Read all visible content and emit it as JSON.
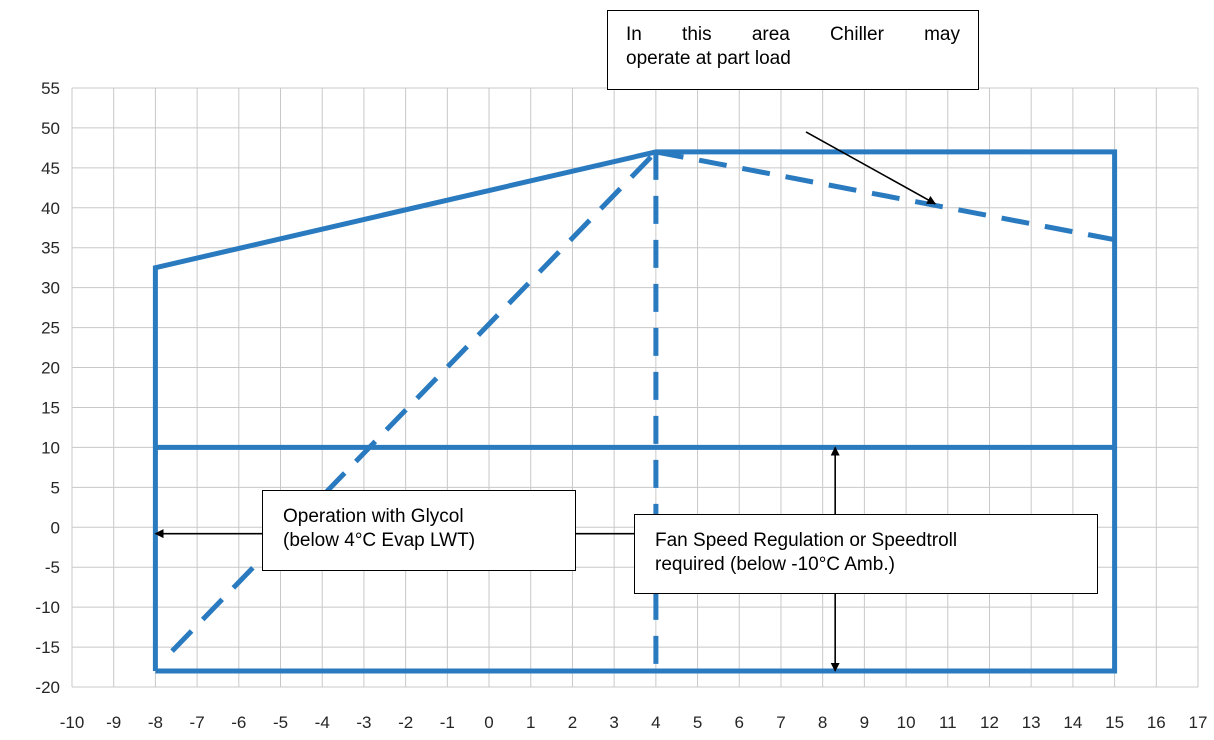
{
  "chart_data": {
    "type": "line",
    "title": "",
    "xlabel": "",
    "ylabel": "",
    "xlim": [
      -10,
      17
    ],
    "ylim": [
      -20,
      55
    ],
    "x_ticks": [
      -10,
      -9,
      -8,
      -7,
      -6,
      -5,
      -4,
      -3,
      -2,
      -1,
      0,
      1,
      2,
      3,
      4,
      5,
      6,
      7,
      8,
      9,
      10,
      11,
      12,
      13,
      14,
      15,
      16,
      17
    ],
    "y_ticks": [
      55,
      50,
      45,
      40,
      35,
      30,
      25,
      20,
      15,
      10,
      5,
      0,
      -5,
      -10,
      -15,
      -20
    ],
    "grid": true,
    "legend": "none",
    "colors": {
      "series": "#2a7ac0",
      "grid": "#c8c8c8",
      "annotation": "#000000"
    },
    "series": [
      {
        "style": "solid",
        "points": [
          [
            -8,
            -18
          ],
          [
            -8,
            32.5
          ],
          [
            4,
            47
          ],
          [
            15,
            47
          ],
          [
            15,
            -18
          ],
          [
            -8,
            -18
          ]
        ]
      },
      {
        "style": "solid",
        "points": [
          [
            -8,
            10
          ],
          [
            15,
            10
          ]
        ]
      },
      {
        "style": "dashed",
        "points": [
          [
            -7.6,
            -15.5
          ],
          [
            4,
            47
          ]
        ]
      },
      {
        "style": "dashed",
        "points": [
          [
            4,
            47
          ],
          [
            11,
            40
          ],
          [
            15,
            36
          ]
        ]
      },
      {
        "style": "dashed",
        "points": [
          [
            4,
            47
          ],
          [
            4,
            -18
          ]
        ]
      }
    ],
    "annotations": [
      {
        "id": "partload",
        "lines": [
          "In this area Chiller may",
          "operate at part load"
        ],
        "arrow_from": [
          7.6,
          49.5
        ],
        "arrow_to": [
          10.7,
          40.5
        ],
        "arrow_heads": "end"
      },
      {
        "id": "glycol",
        "lines": [
          "Operation with Glycol",
          "(below 4°C Evap LWT)"
        ],
        "arrow_from": [
          -8,
          -0.8
        ],
        "arrow_to": [
          4,
          -0.8
        ],
        "arrow_heads": "both"
      },
      {
        "id": "fanspeed",
        "lines": [
          "Fan Speed Regulation or Speedtroll",
          "required (below -10°C Amb.)"
        ],
        "arrow_from": [
          8.3,
          10
        ],
        "arrow_to": [
          8.3,
          -18
        ],
        "arrow_heads": "both"
      }
    ]
  }
}
